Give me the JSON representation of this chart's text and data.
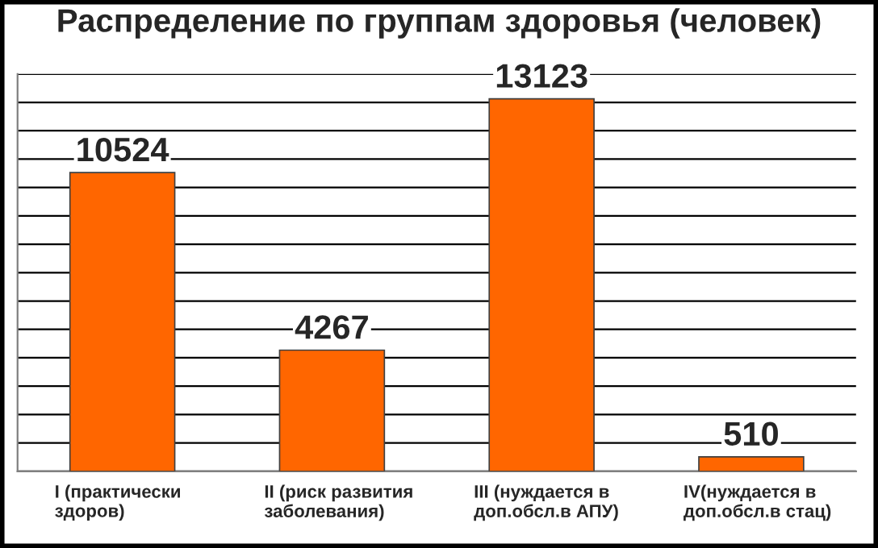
{
  "chart_data": {
    "type": "bar",
    "title": "Распределение по группам здоровья (человек)",
    "categories": [
      "I (практически\nздоров)",
      "II (риск развития\nзаболевания)",
      "III (нуждается в\nдоп.обсл.в АПУ)",
      "IV(нуждается в\nдоп.обсл.в стац)"
    ],
    "values": [
      10524,
      4267,
      13123,
      510
    ],
    "color": "#ff6600",
    "ylim": [
      0,
      14000
    ],
    "yticks": [
      {
        "value": 0,
        "label": null
      },
      {
        "value": 1000,
        "label": null
      },
      {
        "value": 2000,
        "label": null
      },
      {
        "value": 3000,
        "label": null
      },
      {
        "value": 4000,
        "label": null
      },
      {
        "value": 5000,
        "label": null
      },
      {
        "value": 6000,
        "label": null
      },
      {
        "value": 7000,
        "label": null
      },
      {
        "value": 8000,
        "label": null
      },
      {
        "value": 9000,
        "label": null
      },
      {
        "value": 10000,
        "label": null
      },
      {
        "value": 11000,
        "label": null
      },
      {
        "value": 12000,
        "label": null
      },
      {
        "value": 13000,
        "label": null
      },
      {
        "value": 14000,
        "label": null
      }
    ],
    "tick_labels": "x",
    "grid": "y",
    "data_labels": true
  }
}
